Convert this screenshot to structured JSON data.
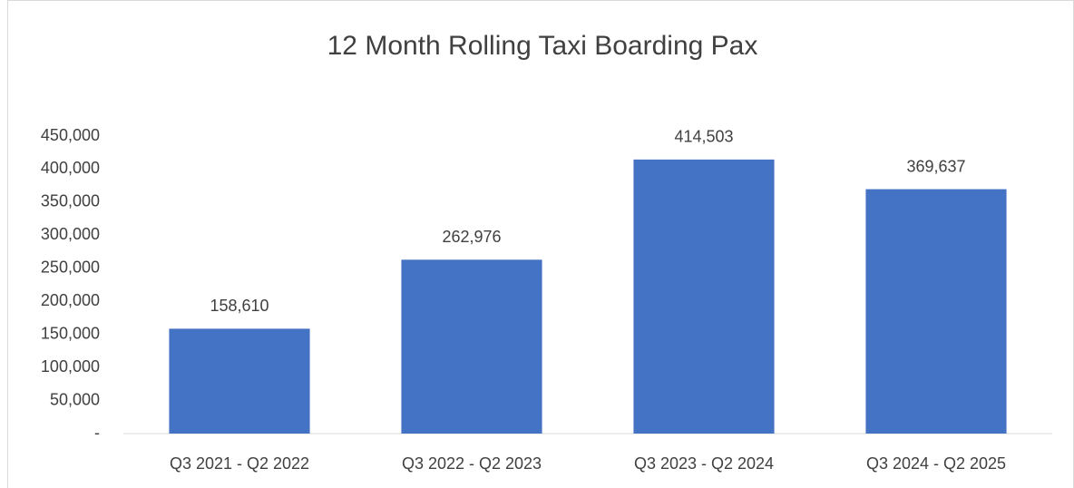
{
  "chart_data": {
    "type": "bar",
    "title": "12 Month Rolling Taxi Boarding Pax",
    "categories": [
      "Q3 2021 - Q2 2022",
      "Q3 2022 - Q2 2023",
      "Q3 2023 - Q2 2024",
      "Q3 2024 - Q2 2025"
    ],
    "values": [
      158610,
      262976,
      414503,
      369637
    ],
    "value_labels": [
      "158,610",
      "262,976",
      "414,503",
      "369,637"
    ],
    "color": "#4472c4",
    "ylim": [
      0,
      450000
    ],
    "yticks": [
      {
        "value": 0,
        "label": "-"
      },
      {
        "value": 50000,
        "label": "50,000"
      },
      {
        "value": 100000,
        "label": "100,000"
      },
      {
        "value": 150000,
        "label": "150,000"
      },
      {
        "value": 200000,
        "label": "200,000"
      },
      {
        "value": 250000,
        "label": "250,000"
      },
      {
        "value": 300000,
        "label": "300,000"
      },
      {
        "value": 350000,
        "label": "350,000"
      },
      {
        "value": 400000,
        "label": "400,000"
      },
      {
        "value": 450000,
        "label": "450,000"
      }
    ],
    "grid": false
  }
}
